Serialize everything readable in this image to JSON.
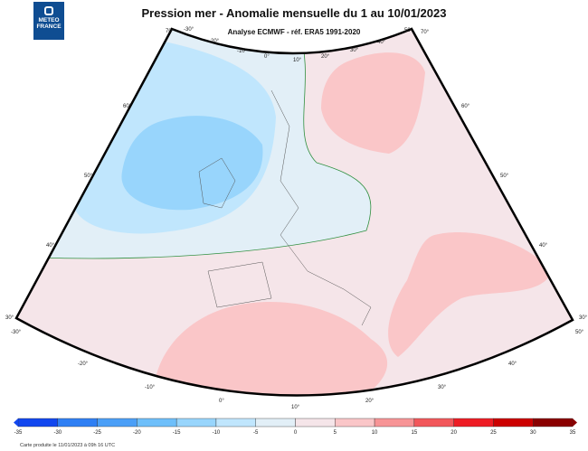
{
  "logo": {
    "line1": "METEO",
    "line2": "FRANCE"
  },
  "title": "Pression mer - Anomalie mensuelle du 1 au 10/01/2023",
  "subtitle": "Analyse ECMWF - réf. ERA5 1991-2020",
  "graticule_labels": {
    "top": [
      "70°",
      "-30°",
      "-20°",
      "-10°",
      "0°",
      "10°",
      "20°",
      "30°",
      "40°",
      "50°",
      "70°"
    ],
    "left": [
      "60°",
      "50°",
      "40°",
      "30°",
      "-30°"
    ],
    "right": [
      "60°",
      "50°",
      "40°",
      "30°",
      "50°"
    ],
    "bottom": [
      "-20°",
      "-10°",
      "0°",
      "10°",
      "20°",
      "30°",
      "40°"
    ]
  },
  "colorbar": {
    "ticks": [
      "-35",
      "-30",
      "-25",
      "-20",
      "-15",
      "-10",
      "-5",
      "0",
      "5",
      "10",
      "15",
      "20",
      "25",
      "30",
      "35"
    ],
    "colors": [
      "#1247ef",
      "#2f7ff4",
      "#4b9ff7",
      "#6ebffa",
      "#98d5fc",
      "#c0e6fd",
      "#e2eff7",
      "#f5e5e9",
      "#fac6c8",
      "#f79496",
      "#f2575b",
      "#ee1c24",
      "#cc0000",
      "#8a0000"
    ]
  },
  "map_colors": {
    "neutral": "#f5e5e9",
    "weak_neg": "#e2eff7",
    "neg_5": "#c0e6fd",
    "neg_10": "#98d5fc",
    "pos_5": "#fac6c8",
    "contour_zero": "#2f8f3f"
  },
  "footer": "Carte produite le 11/01/2023 à 09h 16 UTC"
}
